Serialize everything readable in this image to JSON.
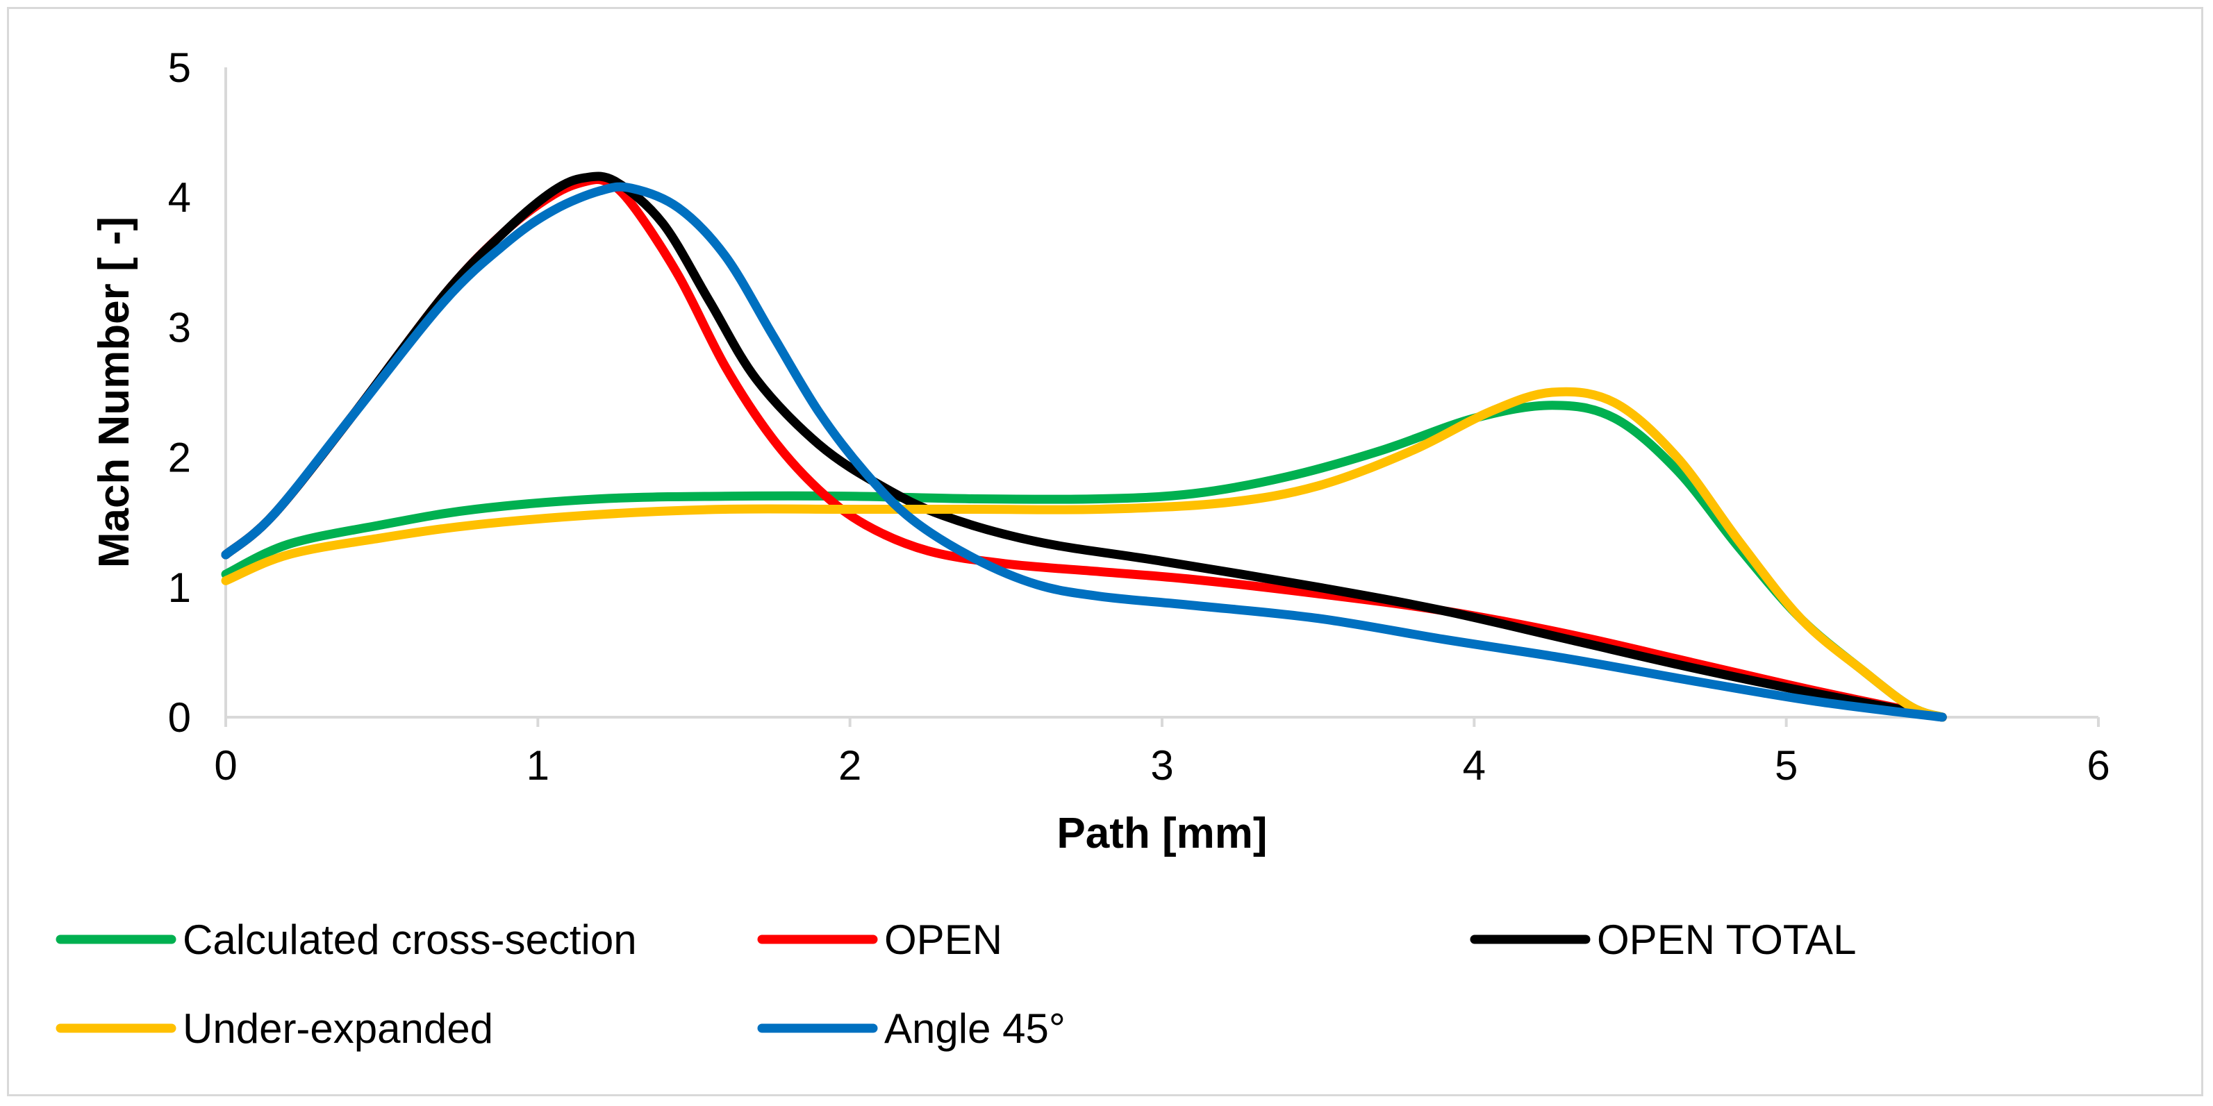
{
  "chart_data": {
    "type": "line",
    "title": "",
    "xlabel": "Path [mm]",
    "ylabel": "Mach Number [ -]",
    "xlim": [
      0,
      6
    ],
    "ylim": [
      0,
      5
    ],
    "xticks": [
      0,
      1,
      2,
      3,
      4,
      5,
      6
    ],
    "yticks": [
      0,
      1,
      2,
      3,
      4,
      5
    ],
    "grid": false,
    "legend_position": "bottom",
    "series": [
      {
        "name": "Calculated cross-section",
        "color": "#00b050",
        "points": [
          [
            0,
            1.1
          ],
          [
            0.2,
            1.33
          ],
          [
            0.5,
            1.48
          ],
          [
            0.8,
            1.6
          ],
          [
            1.2,
            1.68
          ],
          [
            1.6,
            1.7
          ],
          [
            2.0,
            1.7
          ],
          [
            2.4,
            1.68
          ],
          [
            2.8,
            1.68
          ],
          [
            3.1,
            1.72
          ],
          [
            3.4,
            1.85
          ],
          [
            3.7,
            2.05
          ],
          [
            4.0,
            2.3
          ],
          [
            4.25,
            2.4
          ],
          [
            4.45,
            2.3
          ],
          [
            4.65,
            1.9
          ],
          [
            4.85,
            1.3
          ],
          [
            5.05,
            0.75
          ],
          [
            5.25,
            0.35
          ],
          [
            5.4,
            0.08
          ],
          [
            5.5,
            0.0
          ]
        ]
      },
      {
        "name": "OPEN",
        "color": "#ff0000",
        "points": [
          [
            0,
            1.25
          ],
          [
            0.15,
            1.55
          ],
          [
            0.4,
            2.3
          ],
          [
            0.7,
            3.25
          ],
          [
            0.9,
            3.75
          ],
          [
            1.05,
            4.02
          ],
          [
            1.15,
            4.12
          ],
          [
            1.22,
            4.12
          ],
          [
            1.3,
            3.95
          ],
          [
            1.45,
            3.4
          ],
          [
            1.6,
            2.7
          ],
          [
            1.75,
            2.15
          ],
          [
            1.9,
            1.75
          ],
          [
            2.05,
            1.48
          ],
          [
            2.25,
            1.28
          ],
          [
            2.5,
            1.18
          ],
          [
            2.8,
            1.12
          ],
          [
            3.1,
            1.06
          ],
          [
            3.5,
            0.95
          ],
          [
            3.9,
            0.82
          ],
          [
            4.3,
            0.64
          ],
          [
            4.7,
            0.42
          ],
          [
            5.1,
            0.2
          ],
          [
            5.5,
            0.0
          ]
        ]
      },
      {
        "name": "OPEN TOTAL",
        "color": "#000000",
        "points": [
          [
            0,
            1.25
          ],
          [
            0.15,
            1.55
          ],
          [
            0.4,
            2.3
          ],
          [
            0.7,
            3.25
          ],
          [
            0.9,
            3.75
          ],
          [
            1.05,
            4.05
          ],
          [
            1.15,
            4.15
          ],
          [
            1.25,
            4.12
          ],
          [
            1.4,
            3.8
          ],
          [
            1.55,
            3.2
          ],
          [
            1.7,
            2.6
          ],
          [
            1.9,
            2.1
          ],
          [
            2.1,
            1.78
          ],
          [
            2.3,
            1.55
          ],
          [
            2.6,
            1.35
          ],
          [
            3.0,
            1.2
          ],
          [
            3.5,
            1.0
          ],
          [
            3.9,
            0.82
          ],
          [
            4.3,
            0.6
          ],
          [
            4.7,
            0.38
          ],
          [
            5.1,
            0.18
          ],
          [
            5.5,
            0.0
          ]
        ]
      },
      {
        "name": "Under-expanded",
        "color": "#ffc000",
        "points": [
          [
            0,
            1.05
          ],
          [
            0.2,
            1.25
          ],
          [
            0.5,
            1.38
          ],
          [
            0.8,
            1.48
          ],
          [
            1.2,
            1.56
          ],
          [
            1.6,
            1.6
          ],
          [
            2.0,
            1.6
          ],
          [
            2.4,
            1.6
          ],
          [
            2.8,
            1.6
          ],
          [
            3.2,
            1.65
          ],
          [
            3.5,
            1.78
          ],
          [
            3.8,
            2.05
          ],
          [
            4.05,
            2.35
          ],
          [
            4.25,
            2.5
          ],
          [
            4.45,
            2.42
          ],
          [
            4.65,
            2.0
          ],
          [
            4.85,
            1.35
          ],
          [
            5.05,
            0.75
          ],
          [
            5.25,
            0.35
          ],
          [
            5.4,
            0.08
          ],
          [
            5.5,
            0.0
          ]
        ]
      },
      {
        "name": "Angle 45°",
        "color": "#0070c0",
        "points": [
          [
            0,
            1.25
          ],
          [
            0.15,
            1.55
          ],
          [
            0.4,
            2.3
          ],
          [
            0.7,
            3.2
          ],
          [
            0.9,
            3.65
          ],
          [
            1.05,
            3.9
          ],
          [
            1.2,
            4.05
          ],
          [
            1.3,
            4.07
          ],
          [
            1.45,
            3.92
          ],
          [
            1.6,
            3.55
          ],
          [
            1.75,
            2.95
          ],
          [
            1.9,
            2.35
          ],
          [
            2.05,
            1.88
          ],
          [
            2.2,
            1.52
          ],
          [
            2.4,
            1.22
          ],
          [
            2.6,
            1.02
          ],
          [
            2.8,
            0.93
          ],
          [
            3.1,
            0.86
          ],
          [
            3.5,
            0.76
          ],
          [
            3.9,
            0.6
          ],
          [
            4.3,
            0.45
          ],
          [
            4.7,
            0.28
          ],
          [
            5.1,
            0.12
          ],
          [
            5.5,
            0.0
          ]
        ]
      }
    ]
  }
}
